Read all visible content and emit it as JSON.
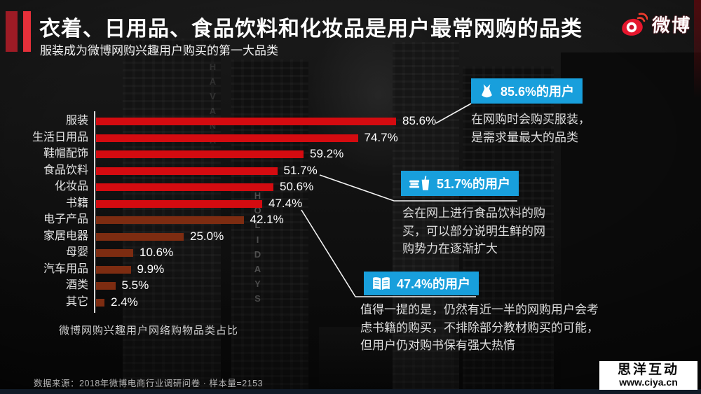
{
  "header": {
    "title": "衣着、日用品、食品饮料和化妆品是用户最常网购的品类",
    "subtitle": "服装成为微博网购兴趣用户购买的第一大品类",
    "logo_text": "微博",
    "accent_dark_color": "#9e1b25",
    "accent_bright_color": "#e5303a"
  },
  "chart_data": {
    "type": "bar",
    "orientation": "horizontal",
    "title": "微博网购兴趣用户网络购物品类占比",
    "categories": [
      "服装",
      "生活日用品",
      "鞋帽配饰",
      "食品饮料",
      "化妆品",
      "书籍",
      "电子产品",
      "家居电器",
      "母婴",
      "汽车用品",
      "酒类",
      "其它"
    ],
    "values": [
      85.6,
      74.7,
      59.2,
      51.7,
      50.6,
      47.4,
      42.1,
      25.0,
      10.6,
      9.9,
      5.5,
      2.4
    ],
    "value_labels": [
      "85.6%",
      "74.7%",
      "59.2%",
      "51.7%",
      "50.6%",
      "47.4%",
      "42.1%",
      "25.0%",
      "10.6%",
      "9.9%",
      "5.5%",
      "2.4%"
    ],
    "bar_colors": [
      "#d40b10",
      "#d40b10",
      "#d40b10",
      "#d40b10",
      "#d40b10",
      "#d40b10",
      "#7d2c11",
      "#7d2c11",
      "#7d2c11",
      "#7d2c11",
      "#7d2c11",
      "#7d2c11"
    ],
    "xlim": [
      0,
      100
    ],
    "grid": false,
    "legend": false
  },
  "callouts": [
    {
      "icon": "dress-icon",
      "headline": "85.6%的用户",
      "body": "在网购时会购买服装，\n是需求量最大的品类",
      "box_color": "#189fdc"
    },
    {
      "icon": "food-drink-icon",
      "headline": "51.7%的用户",
      "body": "会在网上进行食品饮料的购\n买，可以部分说明生鲜的网\n购势力在逐渐扩大",
      "box_color": "#189fdc"
    },
    {
      "icon": "book-icon",
      "headline": "47.4%的用户",
      "body": "值得一提的是，仍然有近一半的网购用户会考\n虑书籍的购买，不排除部分教材购买的可能，\n但用户仍对购书保有强大热情",
      "box_color": "#189fdc"
    }
  ],
  "footer": {
    "source": "数据来源：2018年微博电商行业调研问卷 · 样本量=2153"
  },
  "watermark": {
    "name": "思洋互动",
    "url": "www.ciya.cn"
  },
  "background": {
    "signs": [
      "HAVANA",
      "HOLIDAYS"
    ]
  }
}
